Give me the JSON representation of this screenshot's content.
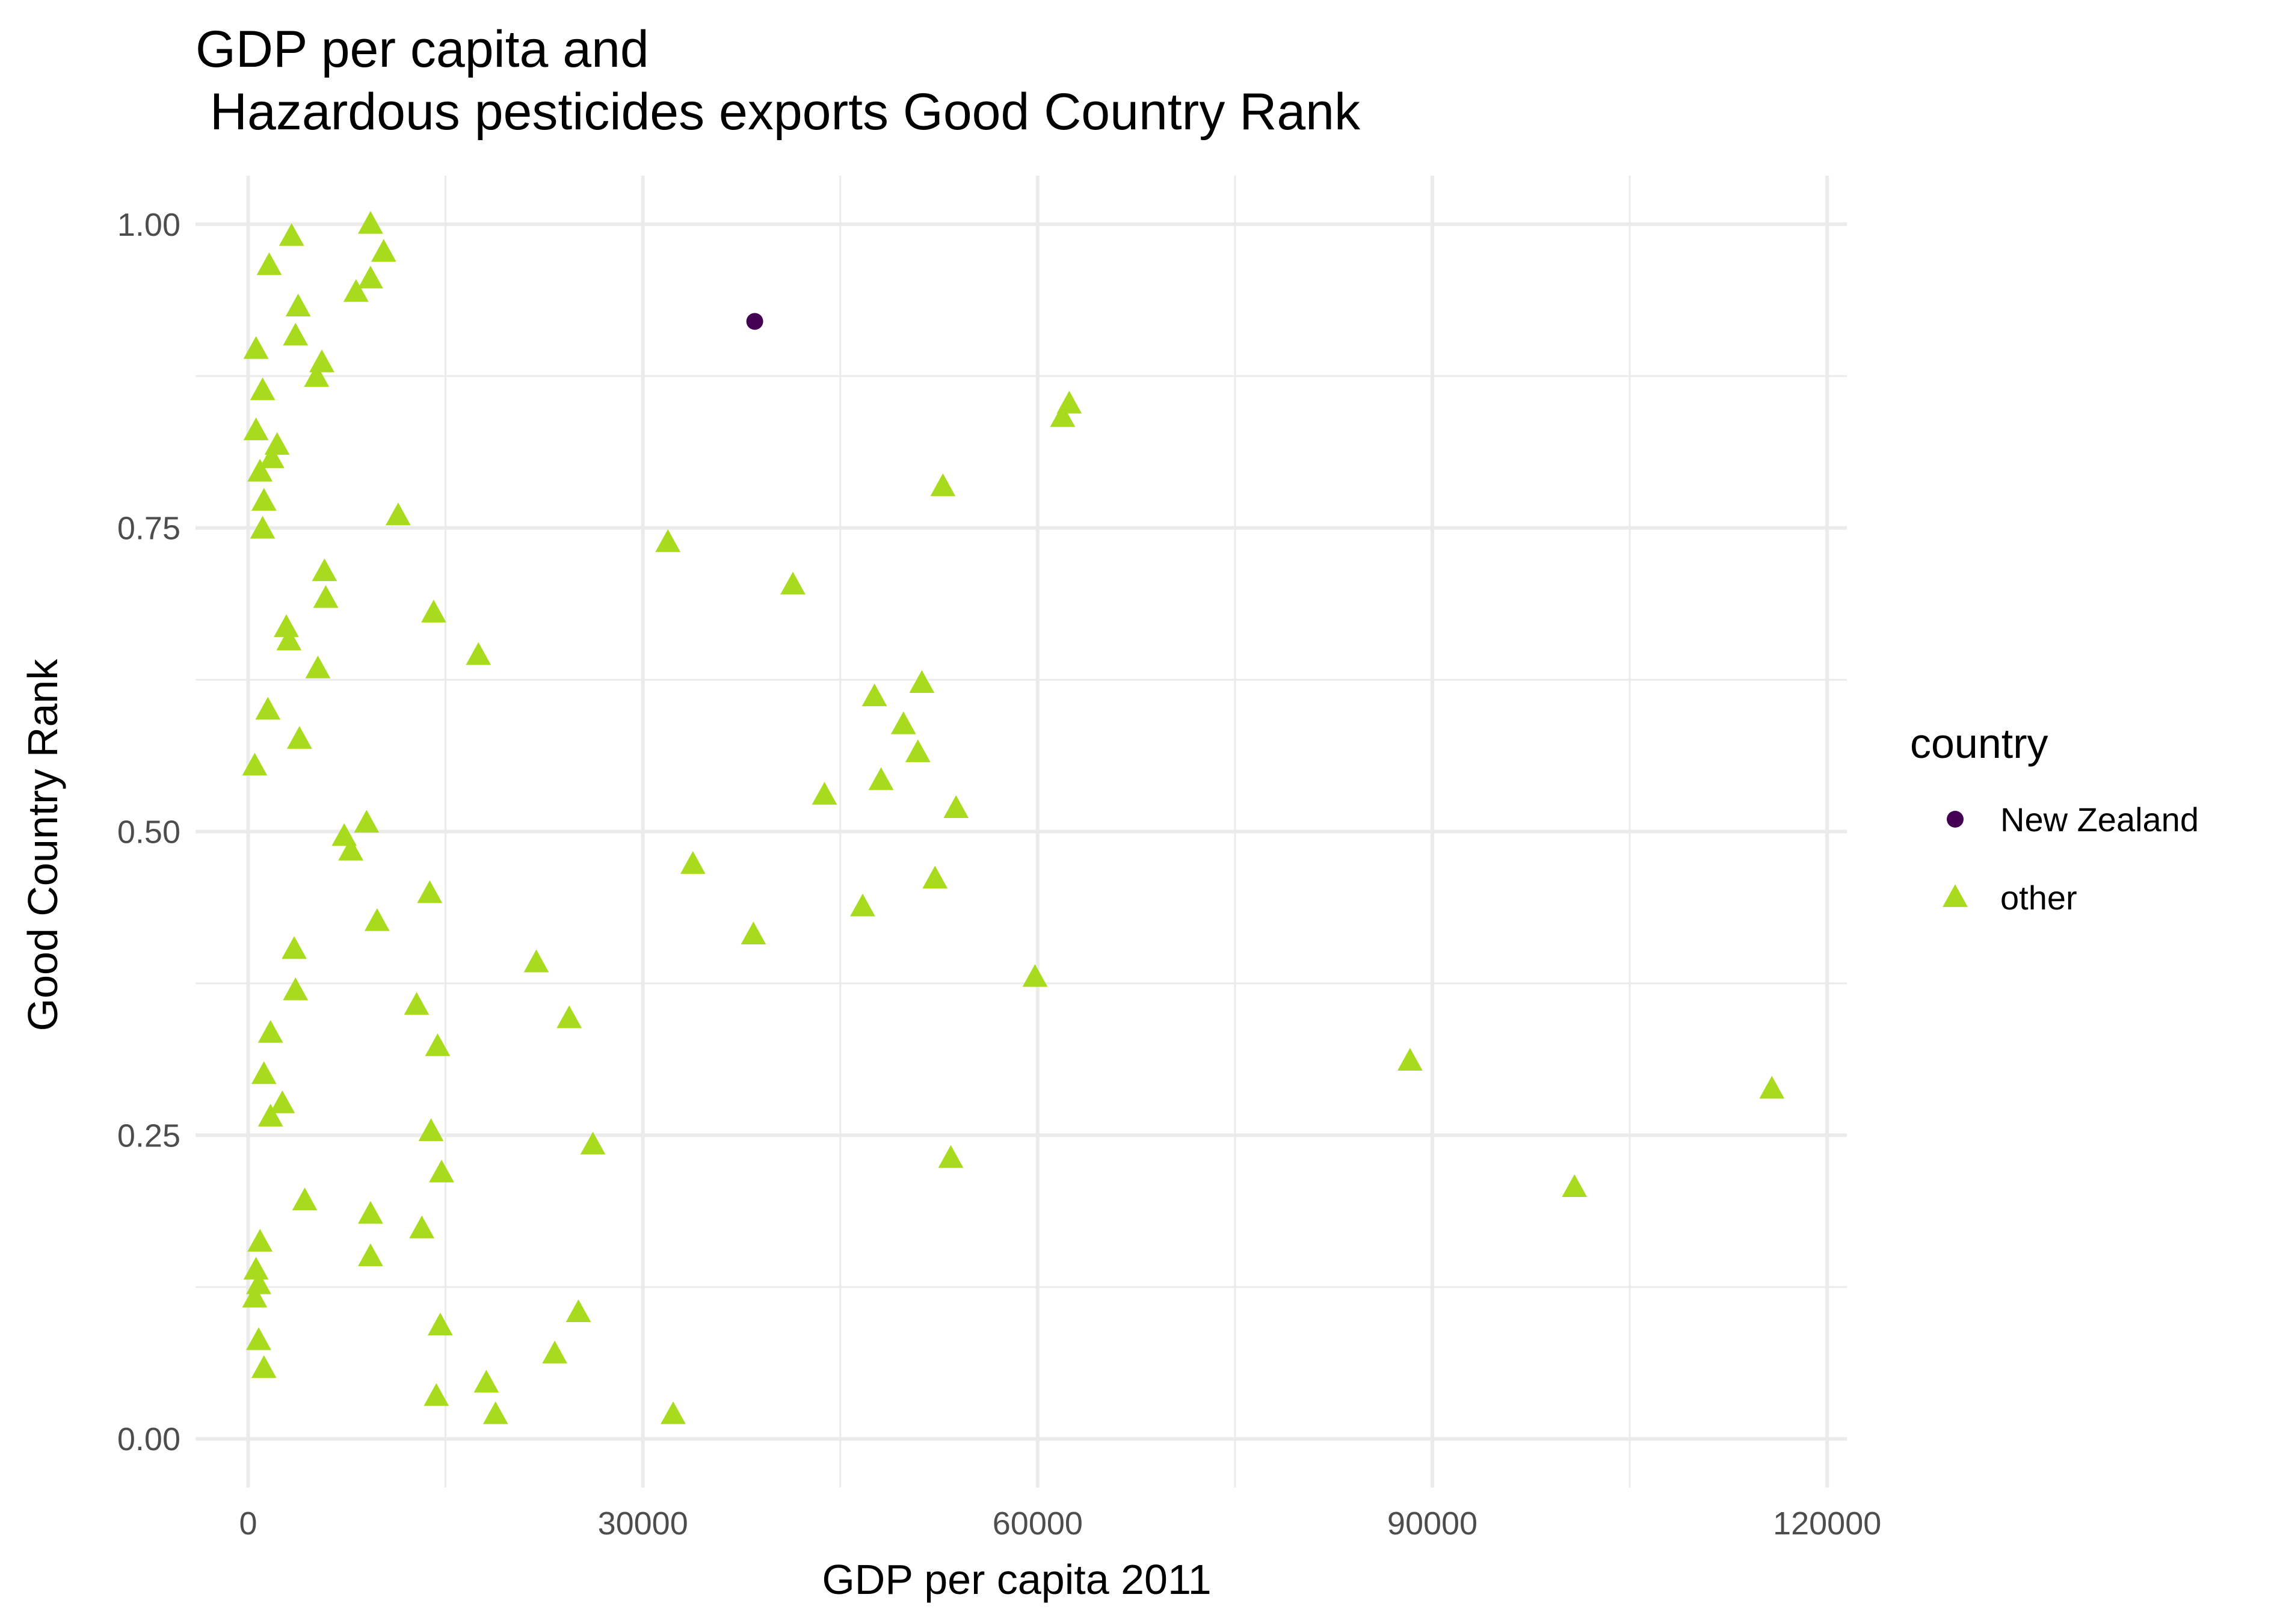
{
  "chart_data": {
    "type": "scatter",
    "title": "GDP per capita and\n Hazardous pesticides exports Good Country Rank",
    "xlabel": "GDP per capita 2011",
    "ylabel": "Good Country Rank",
    "xlim": [
      -4000,
      121500
    ],
    "ylim": [
      -0.04,
      1.04
    ],
    "x_ticks": [
      0,
      30000,
      60000,
      90000,
      120000
    ],
    "x_tick_labels": [
      "0",
      "30000",
      "60000",
      "90000",
      "120000"
    ],
    "y_ticks": [
      0,
      0.25,
      0.5,
      0.75,
      1.0
    ],
    "y_tick_labels": [
      "0.00",
      "0.25",
      "0.50",
      "0.75",
      "1.00"
    ],
    "grid": true,
    "legend": {
      "title": "country",
      "placement": "right",
      "entries": [
        {
          "name": "New Zealand",
          "color": "#440154",
          "shape": "circle"
        },
        {
          "name": "other",
          "color": "#a8db1d",
          "shape": "triangle"
        }
      ]
    },
    "series": [
      {
        "name": "New Zealand",
        "color": "#440154",
        "shape": "circle",
        "points": [
          [
            38500,
            0.92
          ]
        ]
      },
      {
        "name": "other",
        "color": "#a8db1d",
        "shape": "triangle",
        "points": [
          [
            9300,
            1.0
          ],
          [
            3300,
            0.99
          ],
          [
            10300,
            0.977
          ],
          [
            1600,
            0.966
          ],
          [
            9300,
            0.955
          ],
          [
            8200,
            0.944
          ],
          [
            3800,
            0.932
          ],
          [
            3600,
            0.908
          ],
          [
            600,
            0.897
          ],
          [
            5600,
            0.886
          ],
          [
            5200,
            0.874
          ],
          [
            1100,
            0.863
          ],
          [
            62400,
            0.852
          ],
          [
            61900,
            0.841
          ],
          [
            600,
            0.83
          ],
          [
            2200,
            0.818
          ],
          [
            1800,
            0.807
          ],
          [
            900,
            0.796
          ],
          [
            52800,
            0.784
          ],
          [
            1200,
            0.772
          ],
          [
            11400,
            0.76
          ],
          [
            1100,
            0.749
          ],
          [
            31900,
            0.738
          ],
          [
            5800,
            0.714
          ],
          [
            41400,
            0.703
          ],
          [
            5900,
            0.692
          ],
          [
            14100,
            0.68
          ],
          [
            2900,
            0.668
          ],
          [
            3100,
            0.657
          ],
          [
            17500,
            0.645
          ],
          [
            5300,
            0.634
          ],
          [
            51200,
            0.622
          ],
          [
            47600,
            0.611
          ],
          [
            1500,
            0.6
          ],
          [
            49800,
            0.588
          ],
          [
            3900,
            0.576
          ],
          [
            50900,
            0.565
          ],
          [
            500,
            0.554
          ],
          [
            48100,
            0.542
          ],
          [
            43800,
            0.53
          ],
          [
            53800,
            0.519
          ],
          [
            9000,
            0.507
          ],
          [
            7300,
            0.496
          ],
          [
            7800,
            0.484
          ],
          [
            33800,
            0.473
          ],
          [
            52200,
            0.461
          ],
          [
            13800,
            0.449
          ],
          [
            46700,
            0.438
          ],
          [
            9800,
            0.426
          ],
          [
            38400,
            0.415
          ],
          [
            3500,
            0.403
          ],
          [
            21900,
            0.392
          ],
          [
            59800,
            0.38
          ],
          [
            3600,
            0.369
          ],
          [
            12800,
            0.357
          ],
          [
            24400,
            0.346
          ],
          [
            1700,
            0.334
          ],
          [
            14400,
            0.323
          ],
          [
            88300,
            0.311
          ],
          [
            1200,
            0.3
          ],
          [
            115800,
            0.288
          ],
          [
            2600,
            0.276
          ],
          [
            1700,
            0.265
          ],
          [
            13900,
            0.253
          ],
          [
            26200,
            0.242
          ],
          [
            53400,
            0.231
          ],
          [
            14700,
            0.219
          ],
          [
            100800,
            0.207
          ],
          [
            4300,
            0.196
          ],
          [
            9300,
            0.185
          ],
          [
            13200,
            0.173
          ],
          [
            900,
            0.162
          ],
          [
            9300,
            0.15
          ],
          [
            600,
            0.139
          ],
          [
            800,
            0.127
          ],
          [
            500,
            0.116
          ],
          [
            25100,
            0.104
          ],
          [
            14600,
            0.093
          ],
          [
            800,
            0.081
          ],
          [
            23300,
            0.07
          ],
          [
            1200,
            0.058
          ],
          [
            18100,
            0.046
          ],
          [
            14300,
            0.035
          ],
          [
            18800,
            0.02
          ],
          [
            32300,
            0.02
          ]
        ]
      }
    ]
  }
}
